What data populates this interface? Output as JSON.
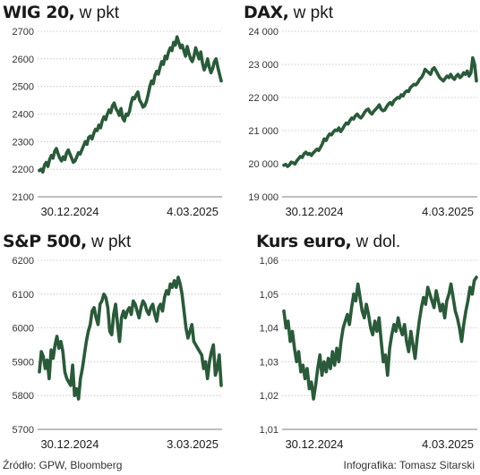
{
  "footer": {
    "source": "Źródło: GPW, Bloomberg",
    "credit": "Infografika: Tomasz Sitarski"
  },
  "colors": {
    "line": "#2b5a3a",
    "grid": "#bdbdbd",
    "axis": "#999999"
  },
  "chart_data": [
    {
      "type": "line",
      "title_bold": "WIG 20,",
      "title_unit": " w pkt",
      "y_ticks": [
        "2700",
        "2600",
        "2500",
        "2400",
        "2300",
        "2200",
        "2100"
      ],
      "ylim": [
        2100,
        2700
      ],
      "x_ticks": [
        "30.12.2024",
        "4.03.2025"
      ],
      "series": [
        {
          "values": [
            2195,
            2200,
            2190,
            2215,
            2225,
            2210,
            2235,
            2250,
            2240,
            2265,
            2275,
            2255,
            2240,
            2230,
            2245,
            2235,
            2260,
            2270,
            2255,
            2240,
            2225,
            2230,
            2245,
            2260,
            2255,
            2270,
            2285,
            2300,
            2290,
            2315,
            2320,
            2310,
            2330,
            2345,
            2340,
            2360,
            2350,
            2375,
            2390,
            2380,
            2400,
            2415,
            2405,
            2430,
            2440,
            2420,
            2410,
            2395,
            2420,
            2385,
            2375,
            2400,
            2395,
            2410,
            2440,
            2460,
            2455,
            2470,
            2480,
            2450,
            2440,
            2425,
            2430,
            2445,
            2470,
            2500,
            2520,
            2510,
            2540,
            2555,
            2545,
            2570,
            2590,
            2580,
            2610,
            2600,
            2625,
            2640,
            2630,
            2660,
            2650,
            2680,
            2660,
            2640,
            2650,
            2630,
            2610,
            2645,
            2620,
            2600,
            2590,
            2610,
            2640,
            2620,
            2600,
            2625,
            2585,
            2560,
            2575,
            2600,
            2570,
            2550,
            2565,
            2590,
            2600,
            2570,
            2545,
            2520
          ]
        }
      ]
    },
    {
      "type": "line",
      "title_bold": "DAX,",
      "title_unit": " w pkt",
      "y_ticks": [
        "24 000",
        "23 000",
        "22 000",
        "21 000",
        "20 000",
        "19 000"
      ],
      "ylim": [
        19000,
        24000
      ],
      "x_ticks": [
        "30.12.2024",
        "4.03.2025"
      ],
      "series": [
        {
          "values": [
            19950,
            19980,
            19920,
            19960,
            20050,
            20030,
            19990,
            20080,
            20150,
            20220,
            20190,
            20300,
            20350,
            20280,
            20310,
            20250,
            20330,
            20380,
            20440,
            20400,
            20500,
            20600,
            20750,
            20700,
            20820,
            20900,
            20870,
            20960,
            21020,
            21000,
            21080,
            20970,
            21050,
            21150,
            21230,
            21200,
            21300,
            21380,
            21350,
            21450,
            21500,
            21420,
            21380,
            21450,
            21550,
            21620,
            21650,
            21550,
            21500,
            21580,
            21640,
            21700,
            21780,
            21650,
            21600,
            21620,
            21720,
            21800,
            21850,
            21780,
            21900,
            21950,
            22000,
            21980,
            22080,
            22050,
            22150,
            22200,
            22180,
            22300,
            22350,
            22400,
            22380,
            22450,
            22550,
            22600,
            22700,
            22850,
            22800,
            22750,
            22700,
            22850,
            22900,
            22800,
            22700,
            22600,
            22550,
            22500,
            22580,
            22650,
            22600,
            22700,
            22600,
            22550,
            22650,
            22700,
            22600,
            22650,
            22750,
            22700,
            22800,
            22650,
            22750,
            23200,
            23000,
            22500
          ]
        }
      ]
    },
    {
      "type": "line",
      "title_bold": "S&P 500,",
      "title_unit": " w pkt",
      "y_ticks": [
        "6200",
        "6100",
        "6000",
        "5900",
        "5800",
        "5700"
      ],
      "ylim": [
        5700,
        6200
      ],
      "x_ticks": [
        "30.12.2024",
        "3.03.2025"
      ],
      "series": [
        {
          "values": [
            5870,
            5930,
            5915,
            5880,
            5905,
            5850,
            5935,
            5910,
            5950,
            5975,
            5940,
            5960,
            5930,
            5870,
            5850,
            5840,
            5830,
            5890,
            5800,
            5820,
            5790,
            5850,
            5880,
            5920,
            5960,
            5990,
            6010,
            6050,
            6060,
            6030,
            6010,
            6070,
            6080,
            6100,
            6090,
            6060,
            5990,
            5980,
            6040,
            6070,
            6010,
            5960,
            6030,
            6050,
            6030,
            6050,
            6060,
            6040,
            6080,
            6070,
            6050,
            6030,
            6060,
            6080,
            6070,
            6050,
            6040,
            6060,
            6070,
            6040,
            6020,
            6060,
            6070,
            6050,
            6090,
            6110,
            6100,
            6130,
            6120,
            6140,
            6120,
            6150,
            6130,
            6100,
            6050,
            6000,
            5970,
            5990,
            6010,
            5960,
            5950,
            5940,
            5930,
            5920,
            5880,
            5900,
            5850,
            5900,
            5930,
            5950,
            5860,
            5880,
            5920,
            5830
          ]
        }
      ]
    },
    {
      "type": "line",
      "title_bold": "Kurs euro,",
      "title_unit": " w dol.",
      "y_ticks": [
        "1,06",
        "1,05",
        "1,04",
        "1,03",
        "1,02",
        "1,01"
      ],
      "ylim": [
        1.01,
        1.06
      ],
      "x_ticks": [
        "30.12.2024",
        "4.03.2025"
      ],
      "series": [
        {
          "values": [
            1.045,
            1.04,
            1.042,
            1.036,
            1.039,
            1.034,
            1.03,
            1.033,
            1.027,
            1.029,
            1.025,
            1.028,
            1.022,
            1.024,
            1.019,
            1.023,
            1.028,
            1.032,
            1.026,
            1.03,
            1.027,
            1.031,
            1.028,
            1.033,
            1.029,
            1.034,
            1.03,
            1.036,
            1.04,
            1.042,
            1.044,
            1.041,
            1.046,
            1.05,
            1.048,
            1.053,
            1.049,
            1.045,
            1.043,
            1.047,
            1.044,
            1.04,
            1.038,
            1.042,
            1.039,
            1.043,
            1.036,
            1.03,
            1.032,
            1.026,
            1.034,
            1.038,
            1.041,
            1.039,
            1.043,
            1.04,
            1.038,
            1.041,
            1.036,
            1.033,
            1.039,
            1.035,
            1.031,
            1.037,
            1.042,
            1.046,
            1.049,
            1.047,
            1.052,
            1.05,
            1.048,
            1.046,
            1.051,
            1.048,
            1.045,
            1.047,
            1.043,
            1.048,
            1.05,
            1.053,
            1.049,
            1.045,
            1.043,
            1.04,
            1.036,
            1.041,
            1.045,
            1.048,
            1.052,
            1.05,
            1.054,
            1.055
          ]
        }
      ]
    }
  ]
}
